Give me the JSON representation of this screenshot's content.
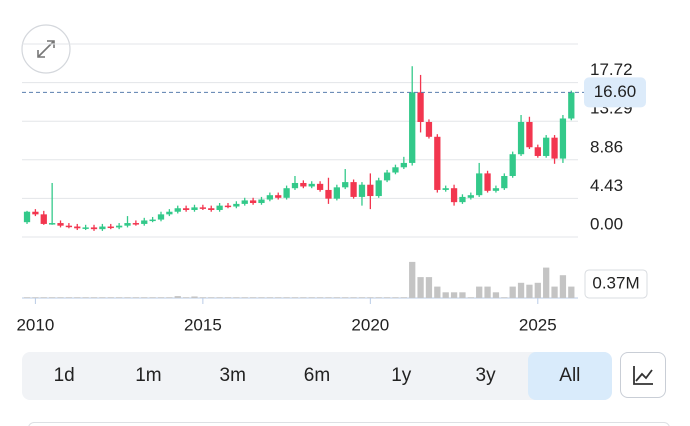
{
  "chart_data": {
    "type": "candlestick",
    "x": [
      2009.75,
      2010.0,
      2010.25,
      2010.5,
      2010.75,
      2011.0,
      2011.25,
      2011.5,
      2011.75,
      2012.0,
      2012.25,
      2012.5,
      2012.75,
      2013.0,
      2013.25,
      2013.5,
      2013.75,
      2014.0,
      2014.25,
      2014.5,
      2014.75,
      2015.0,
      2015.25,
      2015.5,
      2015.75,
      2016.0,
      2016.25,
      2016.5,
      2016.75,
      2017.0,
      2017.25,
      2017.5,
      2017.75,
      2018.0,
      2018.25,
      2018.5,
      2018.75,
      2019.0,
      2019.25,
      2019.5,
      2019.75,
      2020.0,
      2020.25,
      2020.5,
      2020.75,
      2021.0,
      2021.25,
      2021.5,
      2021.75,
      2022.0,
      2022.25,
      2022.5,
      2022.75,
      2023.0,
      2023.25,
      2023.5,
      2023.75,
      2024.0,
      2024.25,
      2024.5,
      2024.75,
      2025.0,
      2025.25,
      2025.5,
      2025.75,
      2026.0
    ],
    "open": [
      1.7,
      2.9,
      2.6,
      1.5,
      1.6,
      1.3,
      1.2,
      1.0,
      1.1,
      0.9,
      1.2,
      1.1,
      1.3,
      1.6,
      1.5,
      1.9,
      2.0,
      2.6,
      2.9,
      3.3,
      3.1,
      3.4,
      3.3,
      3.1,
      3.6,
      3.5,
      3.8,
      4.2,
      3.9,
      4.3,
      4.8,
      4.5,
      5.6,
      6.2,
      5.8,
      6.1,
      5.4,
      4.4,
      5.7,
      6.3,
      4.6,
      6.0,
      4.7,
      6.5,
      7.4,
      8.0,
      8.5,
      16.6,
      13.2,
      11.5,
      5.4,
      5.6,
      4.0,
      4.5,
      4.8,
      7.3,
      5.3,
      5.6,
      7.0,
      9.5,
      13.2,
      10.3,
      9.3,
      11.4,
      9.0,
      13.6
    ],
    "high": [
      3.0,
      3.2,
      3.0,
      6.2,
      1.9,
      1.6,
      1.5,
      1.4,
      1.4,
      1.5,
      1.5,
      1.6,
      2.4,
      1.9,
      2.2,
      2.3,
      2.9,
      3.2,
      3.6,
      3.6,
      3.7,
      3.7,
      3.6,
      3.9,
      3.9,
      4.1,
      4.5,
      4.5,
      4.6,
      5.1,
      5.1,
      5.9,
      7.0,
      6.5,
      6.4,
      6.4,
      6.8,
      6.0,
      7.8,
      6.6,
      6.3,
      7.3,
      6.8,
      7.7,
      8.3,
      9.2,
      19.6,
      18.6,
      13.5,
      11.8,
      5.9,
      6.0,
      4.9,
      5.1,
      8.5,
      7.6,
      5.9,
      7.3,
      9.8,
      14.0,
      13.8,
      10.6,
      11.7,
      11.7,
      14.0,
      16.8
    ],
    "low": [
      1.5,
      2.4,
      1.4,
      1.4,
      1.1,
      1.0,
      0.8,
      0.8,
      0.7,
      0.7,
      0.9,
      0.9,
      1.1,
      1.3,
      1.3,
      1.7,
      1.8,
      2.4,
      2.7,
      2.9,
      2.9,
      3.1,
      2.9,
      2.9,
      3.3,
      3.3,
      3.6,
      3.7,
      3.7,
      4.1,
      4.3,
      4.3,
      5.4,
      5.6,
      5.6,
      5.2,
      3.8,
      4.2,
      5.5,
      4.4,
      3.6,
      3.2,
      4.5,
      6.3,
      7.2,
      7.8,
      8.2,
      12.0,
      11.3,
      5.1,
      5.2,
      3.6,
      3.8,
      4.3,
      4.6,
      5.1,
      5.1,
      5.4,
      6.8,
      9.3,
      10.1,
      9.1,
      9.1,
      8.4,
      8.5,
      13.4
    ],
    "close": [
      2.9,
      2.6,
      1.5,
      1.6,
      1.3,
      1.2,
      1.0,
      1.1,
      0.9,
      1.2,
      1.1,
      1.3,
      1.6,
      1.5,
      1.9,
      2.0,
      2.6,
      2.9,
      3.3,
      3.1,
      3.4,
      3.3,
      3.1,
      3.6,
      3.5,
      3.8,
      4.2,
      3.9,
      4.3,
      4.8,
      4.5,
      5.6,
      6.2,
      5.8,
      6.1,
      5.4,
      4.4,
      5.7,
      6.3,
      4.6,
      6.0,
      4.7,
      6.5,
      7.4,
      8.0,
      8.5,
      16.6,
      13.2,
      11.5,
      5.4,
      5.6,
      4.0,
      4.6,
      4.8,
      7.3,
      5.3,
      5.6,
      7.0,
      9.5,
      13.2,
      10.3,
      9.3,
      11.4,
      9.0,
      13.6,
      16.6
    ],
    "volume": [
      0.02,
      0.02,
      0.02,
      0.02,
      0.02,
      0.02,
      0.02,
      0.02,
      0.02,
      0.02,
      0.02,
      0.02,
      0.02,
      0.02,
      0.02,
      0.02,
      0.02,
      0.02,
      0.05,
      0.02,
      0.04,
      0.02,
      0.02,
      0.02,
      0.02,
      0.02,
      0.02,
      0.02,
      0.02,
      0.02,
      0.02,
      0.02,
      0.02,
      0.02,
      0.02,
      0.02,
      0.02,
      0.02,
      0.02,
      0.02,
      0.02,
      0.02,
      0.02,
      0.02,
      0.02,
      0.02,
      0.95,
      0.55,
      0.55,
      0.3,
      0.15,
      0.15,
      0.15,
      0.02,
      0.3,
      0.3,
      0.15,
      0.02,
      0.3,
      0.4,
      0.35,
      0.4,
      0.8,
      0.3,
      0.6,
      0.3
    ],
    "up_color": "#33c98a",
    "down_color": "#f2364f",
    "volume_color": "#c4c4c4",
    "xlim": [
      2009.6,
      2026.2
    ],
    "xticks": [
      2010,
      2015,
      2020,
      2025
    ],
    "ylim": [
      0,
      22.15
    ],
    "yticks": [
      {
        "value": 0,
        "label": "0.00"
      },
      {
        "value": 4.43,
        "label": "4.43"
      },
      {
        "value": 8.86,
        "label": "8.86"
      },
      {
        "value": 13.29,
        "label": "13.29"
      },
      {
        "value": 17.72,
        "label": "17.72"
      }
    ],
    "grid": true,
    "last_price": {
      "value": 16.6,
      "label": "16.60"
    },
    "vlim": [
      0,
      1.0
    ],
    "volume_ticks": [
      {
        "value": 0.37,
        "label": "0.37M"
      }
    ]
  },
  "range_buttons": [
    "1d",
    "1m",
    "3m",
    "6m",
    "1y",
    "3y",
    "All"
  ],
  "selected_range": 6
}
